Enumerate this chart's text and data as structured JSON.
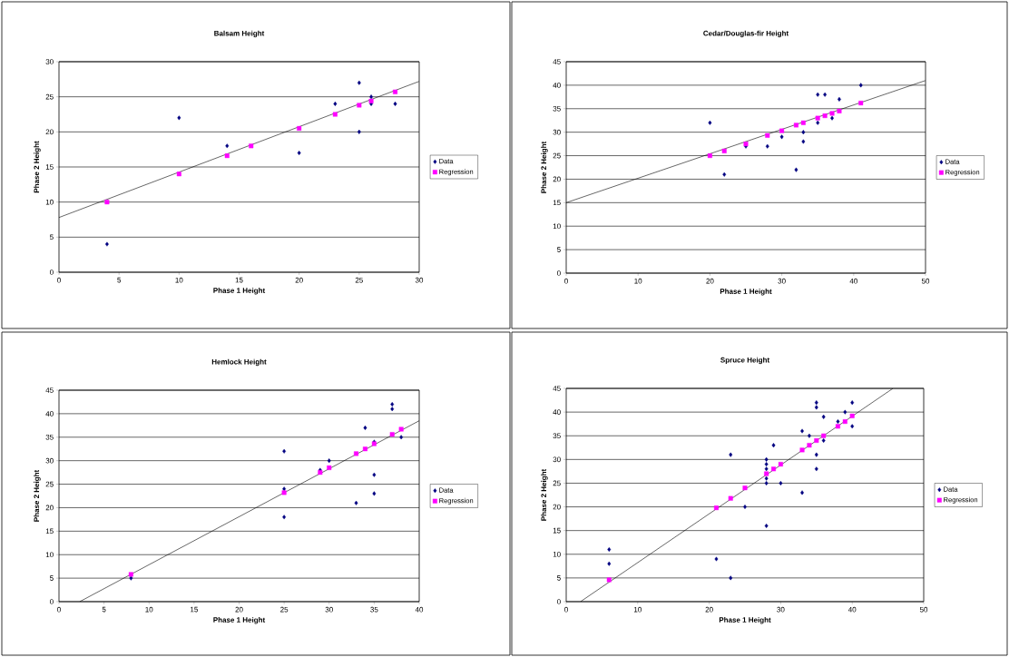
{
  "chart_data": [
    {
      "type": "scatter",
      "title": "Balsam Height",
      "xlabel": "Phase 1 Height",
      "ylabel": "Phase 2 Height",
      "xlim": [
        0,
        30
      ],
      "xticks": [
        0,
        5,
        10,
        15,
        20,
        25,
        30
      ],
      "ylim": [
        0,
        30
      ],
      "yticks": [
        0,
        5,
        10,
        15,
        20,
        25,
        30
      ],
      "grid": "y",
      "legend": "right",
      "series": [
        {
          "name": "Data",
          "color": "#000080",
          "marker": "diamond",
          "x": [
            4,
            10,
            14,
            20,
            23,
            25,
            25,
            26,
            26,
            28
          ],
          "values": [
            4,
            22,
            18,
            17,
            24,
            27,
            20,
            25,
            24,
            24
          ]
        },
        {
          "name": "Regression",
          "color": "#ff00ff",
          "marker": "square",
          "x": [
            4,
            10,
            14,
            16,
            20,
            23,
            25,
            26,
            28
          ],
          "values": [
            10,
            14,
            16.6,
            18,
            20.5,
            22.5,
            23.8,
            24.4,
            25.7
          ]
        },
        {
          "type": "line",
          "color": "#000000",
          "x": [
            0,
            30
          ],
          "values": [
            7.8,
            27.2
          ]
        }
      ]
    },
    {
      "type": "scatter",
      "title": "Cedar/Douglas-fir Height",
      "xlabel": "Phase 1 Height",
      "ylabel": "Phase 2 Height",
      "xlim": [
        0,
        50
      ],
      "xticks": [
        0,
        10,
        20,
        30,
        40,
        50
      ],
      "ylim": [
        0,
        45
      ],
      "yticks": [
        0,
        5,
        10,
        15,
        20,
        25,
        30,
        35,
        40,
        45
      ],
      "grid": "y",
      "legend": "right",
      "series": [
        {
          "name": "Data",
          "color": "#000080",
          "marker": "diamond",
          "x": [
            20,
            22,
            25,
            28,
            30,
            32,
            33,
            33,
            35,
            36,
            35,
            37,
            38,
            41
          ],
          "values": [
            32,
            21,
            27,
            27,
            29,
            22,
            30,
            28,
            38,
            38,
            32,
            33,
            37,
            40
          ]
        },
        {
          "name": "Regression",
          "color": "#ff00ff",
          "marker": "square",
          "x": [
            20,
            22,
            25,
            28,
            30,
            32,
            33,
            35,
            36,
            37,
            38,
            41
          ],
          "values": [
            25,
            26,
            27.5,
            29.3,
            30.3,
            31.5,
            32,
            33,
            33.5,
            34,
            34.5,
            36.2
          ]
        },
        {
          "type": "line",
          "color": "#000000",
          "x": [
            0,
            50
          ],
          "values": [
            15,
            41
          ]
        }
      ]
    },
    {
      "type": "scatter",
      "title": "Hemlock Height",
      "xlabel": "Phase 1 Height",
      "ylabel": "Phase 2 Height",
      "xlim": [
        0,
        40
      ],
      "xticks": [
        0,
        5,
        10,
        15,
        20,
        25,
        30,
        35,
        40
      ],
      "ylim": [
        0,
        45
      ],
      "yticks": [
        0,
        5,
        10,
        15,
        20,
        25,
        30,
        35,
        40,
        45
      ],
      "grid": "y",
      "legend": "right",
      "series": [
        {
          "name": "Data",
          "color": "#000080",
          "marker": "diamond",
          "x": [
            8,
            25,
            25,
            25,
            29,
            30,
            33,
            34,
            35,
            35,
            35,
            37,
            37,
            38
          ],
          "values": [
            5,
            32,
            24,
            18,
            28,
            30,
            21,
            37,
            34,
            27,
            23,
            42,
            41,
            35
          ]
        },
        {
          "name": "Regression",
          "color": "#ff00ff",
          "marker": "square",
          "x": [
            8,
            25,
            29,
            30,
            33,
            34,
            35,
            37,
            38
          ],
          "values": [
            5.8,
            23.2,
            27.5,
            28.5,
            31.5,
            32.5,
            33.6,
            35.6,
            36.7
          ]
        },
        {
          "type": "line",
          "color": "#000000",
          "x": [
            2.3,
            40
          ],
          "values": [
            0,
            38.5
          ]
        }
      ]
    },
    {
      "type": "scatter",
      "title": "Spruce Height",
      "xlabel": "Phase 1 Height",
      "ylabel": "Phase 2 Height",
      "xlim": [
        0,
        50
      ],
      "xticks": [
        0,
        10,
        20,
        30,
        40,
        50
      ],
      "ylim": [
        0,
        45
      ],
      "yticks": [
        0,
        5,
        10,
        15,
        20,
        25,
        30,
        35,
        40,
        45
      ],
      "grid": "y",
      "legend": "right",
      "series": [
        {
          "name": "Data",
          "color": "#000080",
          "marker": "diamond",
          "x": [
            6,
            6,
            21,
            23,
            23,
            25,
            28,
            28,
            28,
            28,
            28,
            28,
            29,
            30,
            33,
            33,
            34,
            35,
            35,
            35,
            35,
            36,
            36,
            38,
            39,
            40,
            40
          ],
          "values": [
            11,
            8,
            9,
            31,
            5,
            20,
            30,
            29,
            28,
            26,
            25,
            16,
            33,
            25,
            36,
            23,
            35,
            42,
            41,
            31,
            28,
            39,
            34,
            38,
            40,
            42,
            37
          ]
        },
        {
          "name": "Regression",
          "color": "#ff00ff",
          "marker": "square",
          "x": [
            6,
            21,
            23,
            25,
            28,
            29,
            30,
            33,
            34,
            35,
            36,
            38,
            39,
            40
          ],
          "values": [
            4.6,
            19.8,
            21.8,
            24,
            27,
            28,
            29,
            32,
            33,
            34,
            35,
            37,
            38,
            39.2
          ]
        },
        {
          "type": "line",
          "color": "#000000",
          "x": [
            2,
            45.7
          ],
          "values": [
            0,
            45
          ]
        }
      ]
    }
  ]
}
